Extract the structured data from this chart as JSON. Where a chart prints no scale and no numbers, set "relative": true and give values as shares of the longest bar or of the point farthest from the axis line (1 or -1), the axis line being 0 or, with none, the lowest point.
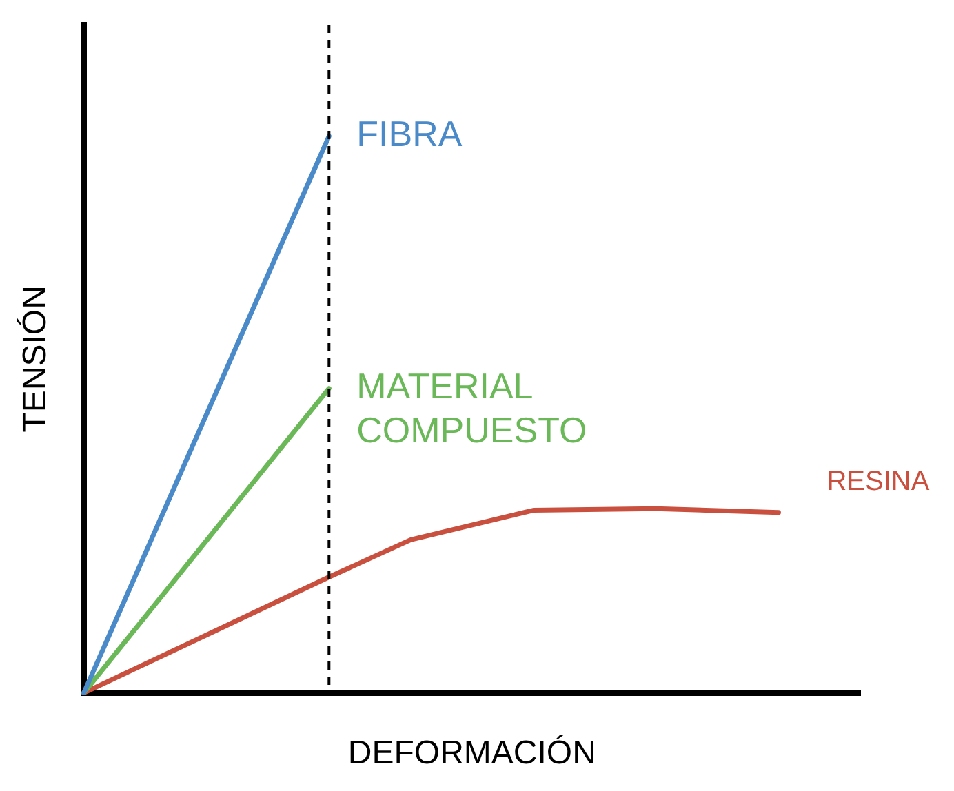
{
  "chart_data": {
    "type": "line",
    "relative": true,
    "xlabel": "DEFORMACIÓN",
    "ylabel": "TENSIÓN",
    "legend": false,
    "marker": "none",
    "line_style": "solid",
    "categories": [
      null,
      null,
      null,
      null,
      null,
      null,
      null,
      null,
      null,
      null,
      null,
      null,
      null,
      null,
      null,
      null,
      null,
      null,
      null,
      null
    ],
    "series": [
      {
        "name": "FIBRA",
        "color": "#4a8ac9",
        "values": [
          0,
          null,
          null,
          null,
          null,
          null,
          1,
          null,
          null,
          null,
          null,
          null,
          null,
          null,
          null,
          null,
          null,
          null,
          null,
          null
        ]
      },
      {
        "name": "MATERIAL COMPUESTO",
        "color": "#6ab858",
        "values": [
          0,
          null,
          null,
          null,
          null,
          null,
          0.547,
          null,
          null,
          null,
          null,
          null,
          null,
          null,
          null,
          null,
          null,
          null,
          null,
          null
        ]
      },
      {
        "name": "RESINA",
        "color": "#c9503f",
        "values": [
          0,
          null,
          null,
          null,
          null,
          null,
          0.208,
          null,
          0.275,
          null,
          null,
          0.328,
          null,
          null,
          0.331,
          null,
          null,
          0.324,
          null,
          null
        ]
      }
    ]
  }
}
